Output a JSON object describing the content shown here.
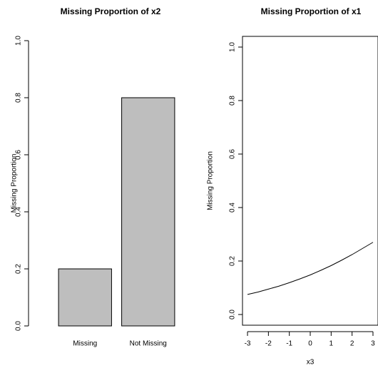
{
  "chart_data": [
    {
      "type": "bar",
      "title": "Missing Proportion of x2",
      "y_label": "Missing Proportion",
      "categories": [
        "Missing",
        "Not Missing"
      ],
      "values": [
        0.2,
        0.8
      ],
      "color": "#bebebe",
      "ylim": [
        0,
        1
      ],
      "yticks": [
        {
          "value": 0,
          "label": "0.0"
        },
        0.2,
        0.4,
        0.6,
        0.8,
        {
          "value": 1,
          "label": "1.0"
        }
      ]
    },
    {
      "type": "line",
      "title": "Missing Proportion of x1",
      "x_label": "x3",
      "y_label": "Missing Proportion",
      "x": [
        -3,
        -2.5,
        -2,
        -1.5,
        -1,
        -0.5,
        0,
        0.5,
        1,
        1.5,
        2,
        2.5,
        3
      ],
      "values": [
        0.075,
        0.084,
        0.095,
        0.106,
        0.119,
        0.133,
        0.148,
        0.165,
        0.183,
        0.203,
        0.224,
        0.247,
        0.27
      ],
      "color": "#000000",
      "xlim": [
        -3.24,
        3.24
      ],
      "xticks": [
        -3,
        -2,
        -1,
        0,
        1,
        2,
        3
      ],
      "ylim": [
        -0.04,
        1.04
      ],
      "yticks": [
        {
          "value": 0,
          "label": "0.0"
        },
        0.2,
        0.4,
        0.6,
        0.8,
        {
          "value": 1,
          "label": "1.0"
        }
      ]
    }
  ]
}
